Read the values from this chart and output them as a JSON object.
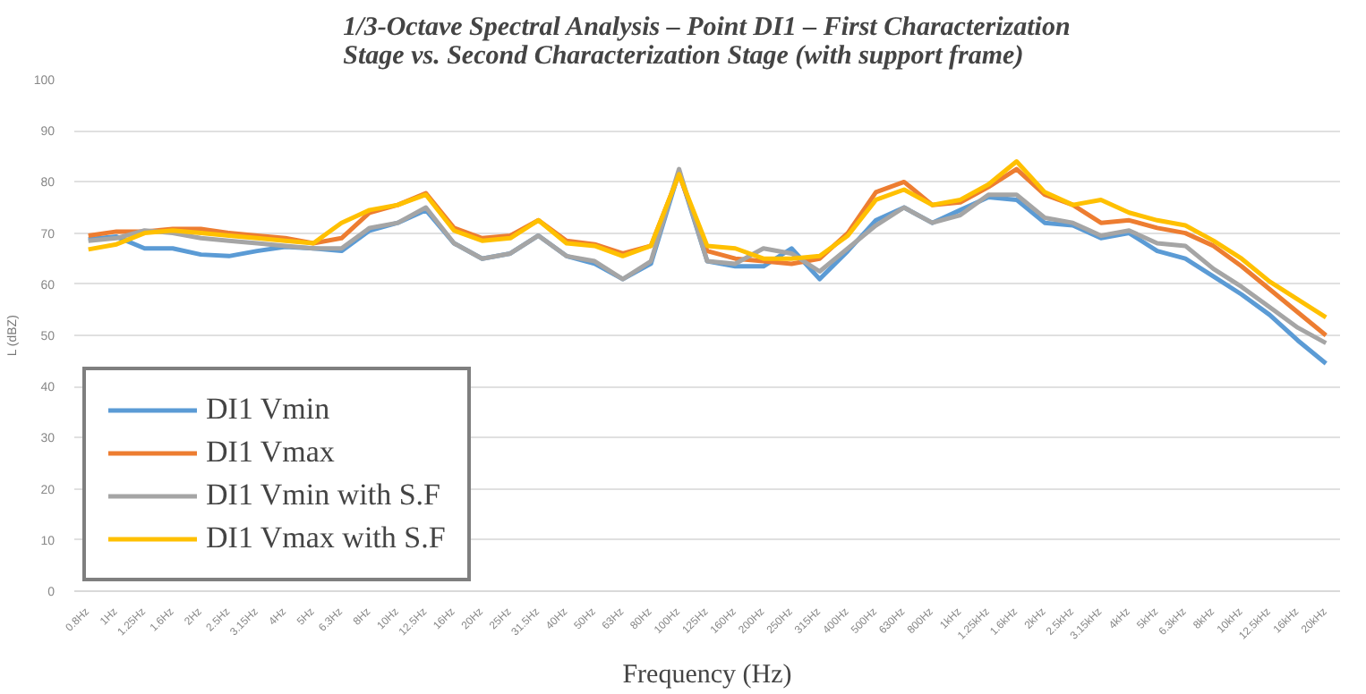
{
  "chart_data": {
    "type": "line",
    "title": "1/3-Octave Spectral Analysis – Point DI1 – First Characterization\nStage vs. Second Characterization Stage (with support frame)",
    "xlabel": "Frequency (Hz)",
    "ylabel": "L (dBZ)",
    "categories": [
      "0.8Hz",
      "1Hz",
      "1.25Hz",
      "1.6Hz",
      "2Hz",
      "2.5Hz",
      "3.15Hz",
      "4Hz",
      "5Hz",
      "6.3Hz",
      "8Hz",
      "10Hz",
      "12.5Hz",
      "16Hz",
      "20Hz",
      "25Hz",
      "31.5Hz",
      "40Hz",
      "50Hz",
      "63Hz",
      "80Hz",
      "100Hz",
      "125Hz",
      "160Hz",
      "200Hz",
      "250Hz",
      "315Hz",
      "400Hz",
      "500Hz",
      "630Hz",
      "800Hz",
      "1kHz",
      "1.25kHz",
      "1.6kHz",
      "2kHz",
      "2.5kHz",
      "3.15kHz",
      "4kHz",
      "5kHz",
      "6.3kHz",
      "8kHz",
      "10kHz",
      "12.5kHz",
      "16kHz",
      "20kHz"
    ],
    "series": [
      {
        "name": "DI1 Vmin",
        "color": "#5b9bd5",
        "values": [
          68.8,
          69.3,
          67,
          67,
          65.8,
          65.5,
          66.5,
          67.3,
          67,
          66.5,
          70.5,
          72,
          74.5,
          68,
          65,
          66,
          69.5,
          65.5,
          64,
          61,
          64,
          82,
          64.5,
          63.5,
          63.5,
          67,
          61,
          66.5,
          72.5,
          75,
          72,
          74.5,
          77,
          76.5,
          72,
          71.5,
          69,
          70,
          66.5,
          65,
          61.5,
          58,
          54,
          49,
          44.5
        ]
      },
      {
        "name": "DI1 Vmax",
        "color": "#ed7d31",
        "values": [
          69.5,
          70.3,
          70.3,
          70.8,
          70.8,
          70,
          69.5,
          69,
          68,
          69,
          74,
          75.5,
          77.8,
          71,
          69,
          69.5,
          72.5,
          68.5,
          67.8,
          66,
          67.5,
          81.5,
          66.5,
          65,
          64.5,
          64,
          65,
          70,
          78,
          80,
          75.5,
          76,
          79,
          82.5,
          77.5,
          75.5,
          72,
          72.5,
          71,
          70,
          67.5,
          63.5,
          59,
          54.5,
          50
        ]
      },
      {
        "name": "DI1 Vmin with S.F",
        "color": "#a5a5a5",
        "values": [
          68.5,
          69,
          70.5,
          70,
          69,
          68.5,
          68,
          67.5,
          67,
          67,
          71,
          72,
          75,
          68,
          65,
          66,
          69.5,
          65.5,
          64.5,
          61,
          64.5,
          82.5,
          64.5,
          64,
          67,
          66,
          62.5,
          67,
          71.5,
          75,
          72,
          73.5,
          77.5,
          77.5,
          73,
          72,
          69.5,
          70.5,
          68,
          67.5,
          63,
          59.5,
          55.5,
          51.5,
          48.5
        ]
      },
      {
        "name": "DI1 Vmax with S.F",
        "color": "#ffc000",
        "values": [
          66.8,
          67.8,
          70,
          70.5,
          70,
          69.5,
          69,
          68.5,
          68,
          72,
          74.5,
          75.5,
          77.5,
          70.5,
          68.5,
          69,
          72.5,
          68,
          67.5,
          65.5,
          67.5,
          81.5,
          67.5,
          67,
          65,
          65,
          65.5,
          69.5,
          76.5,
          78.5,
          75.5,
          76.5,
          79.5,
          84,
          78,
          75.5,
          76.5,
          74,
          72.5,
          71.5,
          68.5,
          65,
          60.5,
          57,
          53.5
        ]
      }
    ],
    "ylim": [
      0,
      100
    ],
    "yticks": [
      0,
      10,
      20,
      30,
      40,
      50,
      60,
      70,
      80,
      90,
      100
    ],
    "grid": "y",
    "legend": "bottom left",
    "marker": "none",
    "line_style": "solid"
  }
}
